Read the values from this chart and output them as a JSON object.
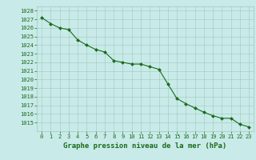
{
  "x": [
    0,
    1,
    2,
    3,
    4,
    5,
    6,
    7,
    8,
    9,
    10,
    11,
    12,
    13,
    14,
    15,
    16,
    17,
    18,
    19,
    20,
    21,
    22,
    23
  ],
  "y": [
    1027.2,
    1026.5,
    1026.0,
    1025.8,
    1024.6,
    1024.0,
    1023.5,
    1023.2,
    1022.2,
    1022.0,
    1021.8,
    1021.8,
    1021.5,
    1021.2,
    1019.5,
    1017.8,
    1017.2,
    1016.7,
    1016.2,
    1015.8,
    1015.5,
    1015.5,
    1014.8,
    1014.5
  ],
  "line_color": "#1a6b1a",
  "marker": "D",
  "marker_size": 2.0,
  "bg_color": "#c8eae8",
  "grid_color": "#a0c8c0",
  "tick_label_color": "#1a6b1a",
  "xlabel": "Graphe pression niveau de la mer (hPa)",
  "xlabel_color": "#1a6b1a",
  "ylim": [
    1014.0,
    1028.5
  ],
  "xlim": [
    -0.5,
    23.5
  ],
  "yticks": [
    1015,
    1016,
    1017,
    1018,
    1019,
    1020,
    1021,
    1022,
    1023,
    1024,
    1025,
    1026,
    1027,
    1028
  ],
  "xticks": [
    0,
    1,
    2,
    3,
    4,
    5,
    6,
    7,
    8,
    9,
    10,
    11,
    12,
    13,
    14,
    15,
    16,
    17,
    18,
    19,
    20,
    21,
    22,
    23
  ],
  "tick_fontsize": 5.0,
  "xlabel_fontsize": 6.5,
  "linewidth": 0.8
}
